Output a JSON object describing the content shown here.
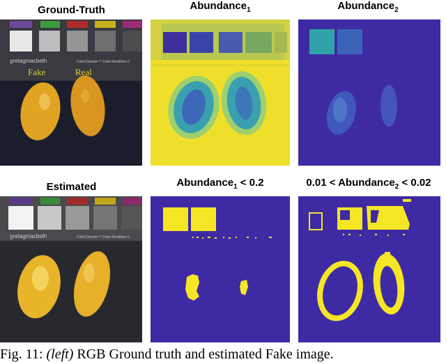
{
  "figure": {
    "row1": {
      "gt_title": "Ground-Truth",
      "ab1_title_main": "Abundance",
      "ab1_title_sub": "1",
      "ab2_title_main": "Abundance",
      "ab2_title_sub": "2"
    },
    "row2": {
      "est_title": "Estimated",
      "th1_title_main": "Abundance",
      "th1_title_sub": "1",
      "th1_title_tail": " < 0.2",
      "th2_title_head": "0.01 < Abundance",
      "th2_title_sub": "2",
      "th2_title_tail": " < 0.02"
    },
    "photo_labels": {
      "fake": "Fake",
      "real": "Real",
      "chart_brand": "gretagmacbeth",
      "chart_name": "ColorChecker™ Color Rendition C"
    },
    "caption": {
      "prefix": "Fig. 11: ",
      "italic": "(left)",
      "rest": " RGB Ground truth and estimated Fake image."
    },
    "colors": {
      "viridis_blue": "#3e2ba3",
      "viridis_yellow": "#f5e625",
      "viridis_teal": "#2fa3a8",
      "photo_bg": "#1c1d2c",
      "lemon": "#e0a422"
    }
  }
}
